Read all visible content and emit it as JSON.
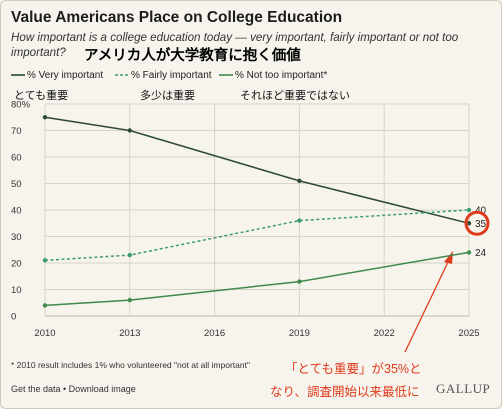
{
  "header": {
    "title": "Value Americans Place on College Education",
    "subtitle_line1": "How important is a college education today — very important, fairly important or not too",
    "subtitle_line2": "important?",
    "jp_title": "アメリカ人が大学教育に抱く価値"
  },
  "legend": [
    {
      "label": "% Very important",
      "jp": "とても重要"
    },
    {
      "label": "% Fairly important",
      "jp": "多少は重要"
    },
    {
      "label": "% Not too important*",
      "jp": "それほど重要ではない"
    }
  ],
  "footnote": "* 2010 result includes 1% who volunteered \"not at all important\"",
  "links": "Get the data • Download image",
  "annotation": {
    "line1": "「とても重要」が35%と",
    "line2": "なり、調査開始以来最低に"
  },
  "brand": "GALLUP",
  "colors": {
    "very": "#2b4a36",
    "fairly": "#3e9a72",
    "not_too": "#3f8a4c",
    "accent": "#e03a1c",
    "grid": "#d8d4c8"
  },
  "chart_data": {
    "type": "line",
    "x_ticks": [
      "2010",
      "2013",
      "2016",
      "2019",
      "2022",
      "2025"
    ],
    "y_ticks": [
      "0",
      "10",
      "20",
      "30",
      "40",
      "50",
      "60",
      "70",
      "80%"
    ],
    "xlim": [
      2010,
      2025
    ],
    "ylim": [
      0,
      80
    ],
    "grid": true,
    "legend_position": "top-left",
    "series": [
      {
        "name": "% Very important",
        "x": [
          2010,
          2013,
          2019,
          2025
        ],
        "values": [
          75,
          70,
          51,
          35
        ],
        "style": "solid",
        "end_label": "35"
      },
      {
        "name": "% Fairly important",
        "x": [
          2010,
          2013,
          2019,
          2025
        ],
        "values": [
          21,
          23,
          36,
          40
        ],
        "style": "dashed",
        "end_label": "40"
      },
      {
        "name": "% Not too important*",
        "x": [
          2010,
          2013,
          2019,
          2025
        ],
        "values": [
          4,
          6,
          13,
          24
        ],
        "style": "solid",
        "end_label": "24"
      }
    ]
  }
}
